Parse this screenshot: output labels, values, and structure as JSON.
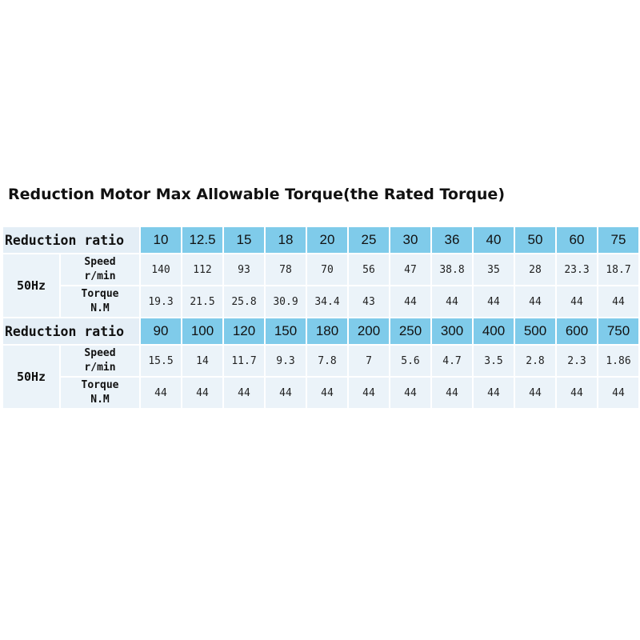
{
  "title": "Reduction Motor Max Allowable Torque(the Rated Torque)",
  "blocks": [
    {
      "ratio_label": "Reduction ratio",
      "freq": "50Hz",
      "speed_label": [
        "Speed",
        "r/min"
      ],
      "torque_label": [
        "Torque",
        "N.M"
      ],
      "ratios": [
        "10",
        "12.5",
        "15",
        "18",
        "20",
        "25",
        "30",
        "36",
        "40",
        "50",
        "60",
        "75"
      ],
      "speeds": [
        "140",
        "112",
        "93",
        "78",
        "70",
        "56",
        "47",
        "38.8",
        "35",
        "28",
        "23.3",
        "18.7"
      ],
      "torques": [
        "19.3",
        "21.5",
        "25.8",
        "30.9",
        "34.4",
        "43",
        "44",
        "44",
        "44",
        "44",
        "44",
        "44"
      ]
    },
    {
      "ratio_label": "Reduction ratio",
      "freq": "50Hz",
      "speed_label": [
        "Speed",
        "r/min"
      ],
      "torque_label": [
        "Torque",
        "N.M"
      ],
      "ratios": [
        "90",
        "100",
        "120",
        "150",
        "180",
        "200",
        "250",
        "300",
        "400",
        "500",
        "600",
        "750"
      ],
      "speeds": [
        "15.5",
        "14",
        "11.7",
        "9.3",
        "7.8",
        "7",
        "5.6",
        "4.7",
        "3.5",
        "2.8",
        "2.3",
        "1.86"
      ],
      "torques": [
        "44",
        "44",
        "44",
        "44",
        "44",
        "44",
        "44",
        "44",
        "44",
        "44",
        "44",
        "44"
      ]
    }
  ],
  "colors": {
    "ratio_header_bg": "#7fcbea",
    "cell_bg": "#ebf3f9",
    "label_bg": "#e4eef6"
  }
}
